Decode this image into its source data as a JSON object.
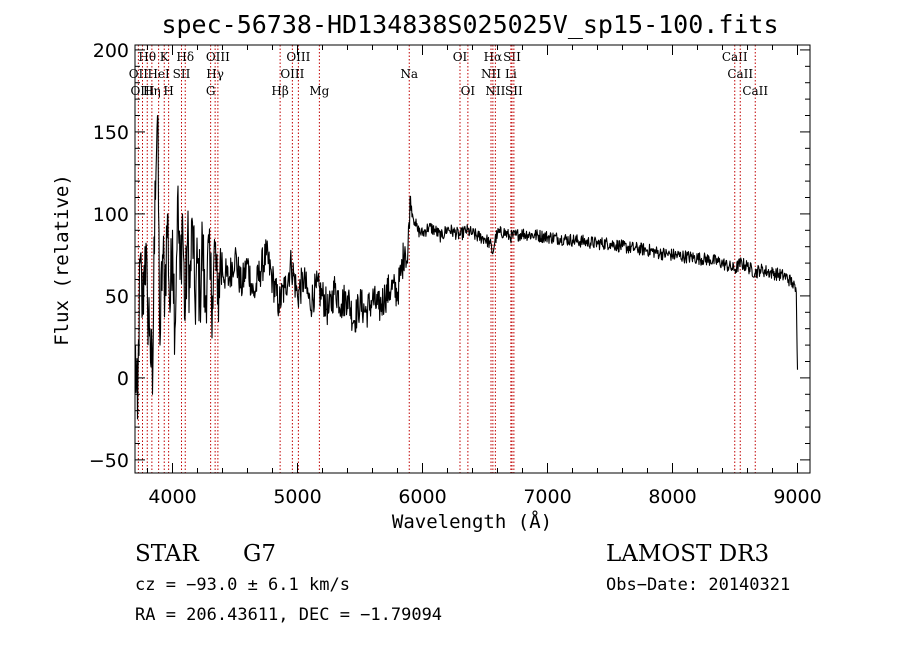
{
  "chart_data": {
    "type": "line",
    "title": "spec-56738-HD134838S025025V_sp15-100.fits",
    "xlabel": "Wavelength (Å)",
    "ylabel": "Flux (relative)",
    "xlim": [
      3700,
      9100
    ],
    "ylim": [
      -58,
      203
    ],
    "xticks": [
      4000,
      5000,
      6000,
      7000,
      8000,
      9000
    ],
    "yticks": [
      -50,
      0,
      50,
      100,
      150,
      200
    ],
    "series": [
      {
        "name": "flux",
        "x": [
          3700,
          3720,
          3740,
          3760,
          3780,
          3800,
          3820,
          3840,
          3860,
          3880,
          3900,
          3920,
          3940,
          3960,
          3980,
          4000,
          4020,
          4040,
          4060,
          4080,
          4100,
          4120,
          4140,
          4160,
          4180,
          4200,
          4220,
          4240,
          4260,
          4280,
          4300,
          4320,
          4340,
          4360,
          4380,
          4400,
          4450,
          4500,
          4550,
          4600,
          4650,
          4700,
          4750,
          4800,
          4850,
          4900,
          4950,
          5000,
          5050,
          5100,
          5150,
          5200,
          5250,
          5300,
          5350,
          5400,
          5450,
          5500,
          5550,
          5600,
          5650,
          5700,
          5750,
          5800,
          5830,
          5860,
          5880,
          5900,
          5920,
          5940,
          5960,
          6000,
          6050,
          6100,
          6150,
          6200,
          6250,
          6300,
          6350,
          6400,
          6450,
          6500,
          6540,
          6563,
          6580,
          6600,
          6650,
          6700,
          6750,
          6800,
          6900,
          7000,
          7100,
          7200,
          7300,
          7400,
          7500,
          7600,
          7700,
          7800,
          7900,
          8000,
          8100,
          8200,
          8300,
          8400,
          8500,
          8542,
          8600,
          8662,
          8700,
          8800,
          8900,
          8960,
          8990,
          9000
        ],
        "values": [
          20,
          -25,
          70,
          40,
          80,
          45,
          30,
          -10,
          120,
          160,
          20,
          75,
          55,
          100,
          40,
          90,
          30,
          110,
          60,
          100,
          35,
          85,
          55,
          95,
          45,
          70,
          50,
          85,
          40,
          75,
          60,
          50,
          80,
          45,
          70,
          65,
          60,
          75,
          55,
          70,
          50,
          65,
          75,
          60,
          45,
          55,
          70,
          50,
          60,
          45,
          55,
          50,
          40,
          55,
          45,
          50,
          35,
          45,
          40,
          48,
          42,
          50,
          55,
          52,
          65,
          80,
          70,
          110,
          100,
          95,
          90,
          88,
          92,
          90,
          86,
          91,
          89,
          87,
          90,
          88,
          86,
          85,
          82,
          76,
          84,
          88,
          89,
          86,
          87,
          88,
          87,
          86,
          85,
          84,
          83,
          82,
          82,
          80,
          79,
          78,
          76,
          75,
          74,
          73,
          72,
          70,
          66,
          70,
          68,
          64,
          66,
          64,
          62,
          58,
          52,
          5
        ]
      }
    ],
    "markers": [
      {
        "label": "Hθ",
        "x": 3798,
        "row": 1
      },
      {
        "label": "OII",
        "x": 3727,
        "row": 2
      },
      {
        "label": "OIII",
        "x": 3760,
        "row": 3
      },
      {
        "label": "Hη",
        "x": 3835,
        "row": 3
      },
      {
        "label": "HeI",
        "x": 3889,
        "row": 2
      },
      {
        "label": "K",
        "x": 3934,
        "row": 1
      },
      {
        "label": "H",
        "x": 3969,
        "row": 3
      },
      {
        "label": "SII",
        "x": 4072,
        "row": 2
      },
      {
        "label": "Hδ",
        "x": 4102,
        "row": 1
      },
      {
        "label": "OIII",
        "x": 4363,
        "row": 1
      },
      {
        "label": "Hγ",
        "x": 4341,
        "row": 2
      },
      {
        "label": "G",
        "x": 4305,
        "row": 3
      },
      {
        "label": "Hβ",
        "x": 4861,
        "row": 3
      },
      {
        "label": "OIII",
        "x": 5007,
        "row": 1
      },
      {
        "label": "OIII",
        "x": 4959,
        "row": 2
      },
      {
        "label": "Mg",
        "x": 5175,
        "row": 3
      },
      {
        "label": "Na",
        "x": 5894,
        "row": 2
      },
      {
        "label": "OI",
        "x": 6300,
        "row": 1
      },
      {
        "label": "OI",
        "x": 6363,
        "row": 3
      },
      {
        "label": "Hα",
        "x": 6563,
        "row": 1
      },
      {
        "label": "NII",
        "x": 6548,
        "row": 2
      },
      {
        "label": "NII",
        "x": 6583,
        "row": 3
      },
      {
        "label": "SII",
        "x": 6716,
        "row": 1
      },
      {
        "label": "Li",
        "x": 6707,
        "row": 2
      },
      {
        "label": "SII",
        "x": 6731,
        "row": 3
      },
      {
        "label": "CaII",
        "x": 8498,
        "row": 1
      },
      {
        "label": "CaII",
        "x": 8542,
        "row": 2
      },
      {
        "label": "CaII",
        "x": 8662,
        "row": 3
      }
    ]
  },
  "info": {
    "class": "STAR",
    "subclass": "G7",
    "survey": "LAMOST DR3",
    "cz": "cz = −93.0 ± 6.1 km/s",
    "obs_date": "Obs−Date: 20140321",
    "radec": "RA = 206.43611, DEC =  −1.79094"
  }
}
